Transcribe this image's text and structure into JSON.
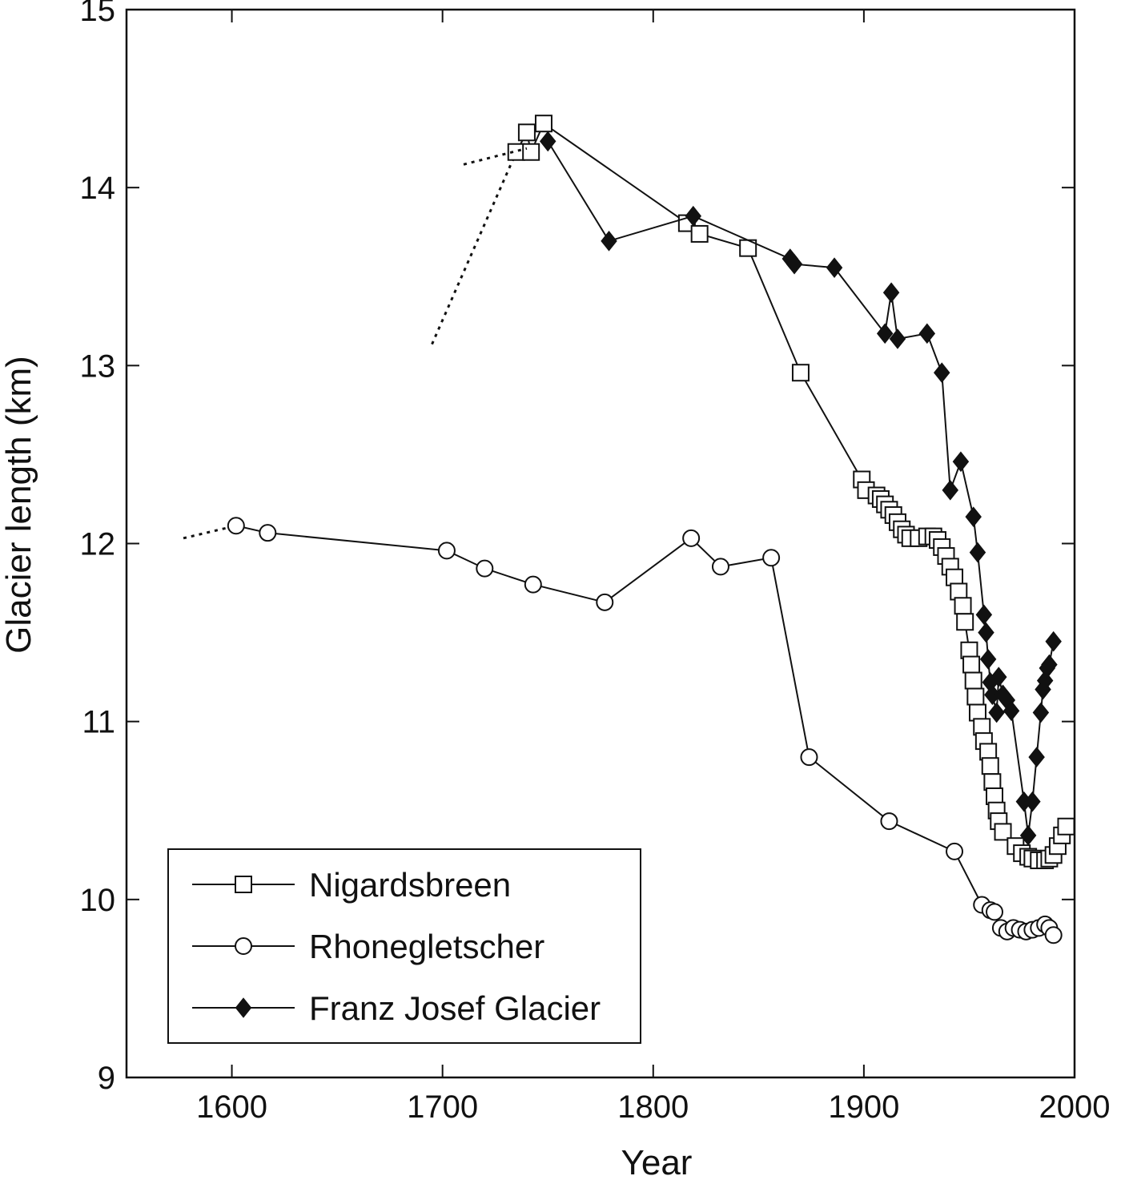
{
  "chart_data": {
    "type": "line",
    "xlabel": "Year",
    "ylabel": "Glacier length (km)",
    "xlim": [
      1550,
      2000
    ],
    "ylim": [
      9,
      15
    ],
    "xticks": [
      1600,
      1700,
      1800,
      1900,
      2000
    ],
    "yticks": [
      9,
      10,
      11,
      12,
      13,
      14,
      15
    ],
    "grid": false,
    "legend_position": "bottom-left",
    "series": [
      {
        "name": "Nigardsbreen",
        "marker": "open-square",
        "color": "#111111",
        "points": [
          [
            1735,
            14.2
          ],
          [
            1740,
            14.31
          ],
          [
            1742,
            14.2
          ],
          [
            1748,
            14.36
          ],
          [
            1816,
            13.8
          ],
          [
            1822,
            13.74
          ],
          [
            1845,
            13.66
          ],
          [
            1870,
            12.96
          ],
          [
            1899,
            12.36
          ],
          [
            1901,
            12.3
          ],
          [
            1906,
            12.27
          ],
          [
            1908,
            12.25
          ],
          [
            1910,
            12.22
          ],
          [
            1912,
            12.19
          ],
          [
            1914,
            12.16
          ],
          [
            1916,
            12.12
          ],
          [
            1918,
            12.08
          ],
          [
            1920,
            12.05
          ],
          [
            1922,
            12.03
          ],
          [
            1926,
            12.03
          ],
          [
            1930,
            12.04
          ],
          [
            1933,
            12.04
          ],
          [
            1935,
            12.02
          ],
          [
            1937,
            11.98
          ],
          [
            1939,
            11.93
          ],
          [
            1941,
            11.87
          ],
          [
            1943,
            11.81
          ],
          [
            1945,
            11.73
          ],
          [
            1947,
            11.65
          ],
          [
            1948,
            11.56
          ],
          [
            1950,
            11.4
          ],
          [
            1951,
            11.32
          ],
          [
            1952,
            11.23
          ],
          [
            1953,
            11.14
          ],
          [
            1954,
            11.05
          ],
          [
            1956,
            10.97
          ],
          [
            1957,
            10.89
          ],
          [
            1959,
            10.83
          ],
          [
            1960,
            10.75
          ],
          [
            1961,
            10.66
          ],
          [
            1962,
            10.58
          ],
          [
            1963,
            10.5
          ],
          [
            1964,
            10.44
          ],
          [
            1966,
            10.38
          ],
          [
            1972,
            10.3
          ],
          [
            1975,
            10.26
          ],
          [
            1978,
            10.24
          ],
          [
            1980,
            10.23
          ],
          [
            1983,
            10.22
          ],
          [
            1986,
            10.22
          ],
          [
            1988,
            10.23
          ],
          [
            1990,
            10.25
          ],
          [
            1992,
            10.3
          ],
          [
            1994,
            10.36
          ],
          [
            1996,
            10.41
          ]
        ],
        "dotted_extension": [
          [
            1695,
            13.12
          ],
          [
            1735,
            14.2
          ]
        ]
      },
      {
        "name": "Rhonegletscher",
        "marker": "open-circle",
        "color": "#111111",
        "points": [
          [
            1602,
            12.1
          ],
          [
            1617,
            12.06
          ],
          [
            1702,
            11.96
          ],
          [
            1720,
            11.86
          ],
          [
            1743,
            11.77
          ],
          [
            1777,
            11.67
          ],
          [
            1818,
            12.03
          ],
          [
            1832,
            11.87
          ],
          [
            1856,
            11.92
          ],
          [
            1874,
            10.8
          ],
          [
            1912,
            10.44
          ],
          [
            1943,
            10.27
          ],
          [
            1956,
            9.97
          ],
          [
            1960,
            9.94
          ],
          [
            1962,
            9.93
          ],
          [
            1965,
            9.84
          ],
          [
            1968,
            9.82
          ],
          [
            1971,
            9.84
          ],
          [
            1974,
            9.83
          ],
          [
            1977,
            9.82
          ],
          [
            1980,
            9.83
          ],
          [
            1983,
            9.84
          ],
          [
            1986,
            9.86
          ],
          [
            1988,
            9.84
          ],
          [
            1990,
            9.8
          ]
        ],
        "dotted_extension": [
          [
            1577,
            12.03
          ],
          [
            1602,
            12.1
          ]
        ]
      },
      {
        "name": "Franz Josef Glacier",
        "marker": "filled-diamond",
        "color": "#111111",
        "points": [
          [
            1750,
            14.26
          ],
          [
            1779,
            13.7
          ],
          [
            1819,
            13.84
          ],
          [
            1865,
            13.6
          ],
          [
            1867,
            13.57
          ],
          [
            1886,
            13.55
          ],
          [
            1910,
            13.18
          ],
          [
            1913,
            13.41
          ],
          [
            1916,
            13.15
          ],
          [
            1930,
            13.18
          ],
          [
            1937,
            12.96
          ],
          [
            1941,
            12.3
          ],
          [
            1946,
            12.46
          ],
          [
            1952,
            12.15
          ],
          [
            1954,
            11.95
          ],
          [
            1957,
            11.6
          ],
          [
            1958,
            11.5
          ],
          [
            1959,
            11.35
          ],
          [
            1960,
            11.22
          ],
          [
            1961,
            11.15
          ],
          [
            1963,
            11.05
          ],
          [
            1964,
            11.25
          ],
          [
            1966,
            11.15
          ],
          [
            1968,
            11.12
          ],
          [
            1970,
            11.06
          ],
          [
            1976,
            10.55
          ],
          [
            1978,
            10.36
          ],
          [
            1980,
            10.55
          ],
          [
            1982,
            10.8
          ],
          [
            1984,
            11.05
          ],
          [
            1985,
            11.18
          ],
          [
            1986,
            11.23
          ],
          [
            1987,
            11.3
          ],
          [
            1988,
            11.32
          ],
          [
            1990,
            11.45
          ]
        ],
        "dotted_extension": [
          [
            1710,
            14.13
          ],
          [
            1740,
            14.22
          ]
        ]
      }
    ]
  },
  "legend": [
    {
      "label": "Nigardsbreen",
      "marker": "open-square"
    },
    {
      "label": "Rhonegletscher",
      "marker": "open-circle"
    },
    {
      "label": "Franz Josef Glacier",
      "marker": "filled-diamond"
    }
  ]
}
